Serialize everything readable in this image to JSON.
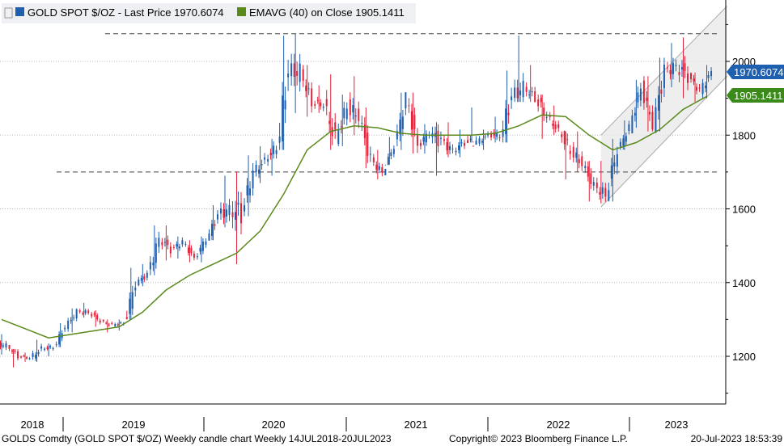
{
  "legend": {
    "item1_label": "GOLD SPOT $/OZ - Last Price 1970.6074",
    "item1_color": "#1f5fb0",
    "item2_label": "EMAVG (40)  on Close 1905.1411",
    "item2_color": "#5a8a1a"
  },
  "badges": {
    "last_price": "1970.6074",
    "last_price_color": "#1f5fb0",
    "ema": "1905.1411",
    "ema_color": "#3a8a1a"
  },
  "footer": {
    "left": "GOLDS Comdty (GOLD SPOT $/OZ) Weekly candle chart  Weekly 14JUL2018-20JUL2023",
    "center": "Copyright© 2023 Bloomberg Finance L.P.",
    "right": "20-Jul-2023 18:53:39"
  },
  "chart_data": {
    "type": "candlestick",
    "title": "",
    "frequency": "Weekly",
    "x_range": [
      "2018-07-14",
      "2023-07-20"
    ],
    "y_axis_side": "right",
    "ylim": [
      1100,
      2150
    ],
    "yticks": [
      1200,
      1400,
      1600,
      1800,
      2000
    ],
    "xtick_labels": [
      "2018",
      "2019",
      "2020",
      "2021",
      "2022",
      "2023"
    ],
    "grid": "horizontal-dotted",
    "up_color": "#1f5fb0",
    "down_color": "#e0223a",
    "series": [
      {
        "name": "GOLD SPOT $/OZ",
        "kind": "candles",
        "x": [
          "2018-07",
          "2018-08",
          "2018-09",
          "2018-10",
          "2018-11",
          "2018-12",
          "2019-01",
          "2019-02",
          "2019-03",
          "2019-04",
          "2019-05",
          "2019-06",
          "2019-07",
          "2019-08",
          "2019-09",
          "2019-10",
          "2019-11",
          "2019-12",
          "2020-01",
          "2020-02",
          "2020-03",
          "2020-04",
          "2020-05",
          "2020-06",
          "2020-07",
          "2020-08",
          "2020-09",
          "2020-10",
          "2020-11",
          "2020-12",
          "2021-01",
          "2021-02",
          "2021-03",
          "2021-04",
          "2021-05",
          "2021-06",
          "2021-07",
          "2021-08",
          "2021-09",
          "2021-10",
          "2021-11",
          "2021-12",
          "2022-01",
          "2022-02",
          "2022-03",
          "2022-04",
          "2022-05",
          "2022-06",
          "2022-07",
          "2022-08",
          "2022-09",
          "2022-10",
          "2022-11",
          "2022-12",
          "2023-01",
          "2023-02",
          "2023-03",
          "2023-04",
          "2023-05",
          "2023-06",
          "2023-07"
        ],
        "close": [
          1230,
          1200,
          1195,
          1220,
          1225,
          1280,
          1320,
          1320,
          1295,
          1285,
          1290,
          1400,
          1420,
          1520,
          1490,
          1510,
          1465,
          1520,
          1580,
          1600,
          1590,
          1700,
          1730,
          1770,
          1970,
          1970,
          1890,
          1880,
          1790,
          1880,
          1850,
          1730,
          1700,
          1770,
          1900,
          1770,
          1810,
          1780,
          1760,
          1780,
          1780,
          1800,
          1800,
          1900,
          1930,
          1900,
          1850,
          1810,
          1760,
          1720,
          1660,
          1640,
          1760,
          1820,
          1930,
          1830,
          1970,
          1990,
          1960,
          1920,
          1970
        ],
        "high": [
          1260,
          1220,
          1210,
          1245,
          1235,
          1290,
          1330,
          1345,
          1325,
          1300,
          1300,
          1440,
          1450,
          1555,
          1555,
          1525,
          1515,
          1525,
          1610,
          1690,
          1700,
          1745,
          1770,
          1790,
          2070,
          2075,
          1990,
          1935,
          1965,
          1910,
          1960,
          1875,
          1760,
          1795,
          1915,
          1915,
          1830,
          1835,
          1835,
          1815,
          1875,
          1815,
          1850,
          1975,
          2070,
          1990,
          1910,
          1880,
          1810,
          1810,
          1730,
          1730,
          1790,
          1840,
          1950,
          1960,
          2010,
          2050,
          2065,
          1970,
          1990
        ],
        "low": [
          1205,
          1170,
          1185,
          1185,
          1200,
          1225,
          1265,
          1305,
          1280,
          1265,
          1270,
          1300,
          1390,
          1420,
          1460,
          1465,
          1455,
          1455,
          1515,
          1550,
          1450,
          1580,
          1670,
          1690,
          1760,
          1860,
          1850,
          1860,
          1760,
          1770,
          1800,
          1710,
          1680,
          1720,
          1760,
          1750,
          1750,
          1690,
          1740,
          1740,
          1780,
          1760,
          1780,
          1780,
          1890,
          1890,
          1790,
          1800,
          1680,
          1700,
          1620,
          1615,
          1620,
          1760,
          1820,
          1810,
          1810,
          1930,
          1900,
          1890,
          1900
        ]
      },
      {
        "name": "EMAVG (40)",
        "kind": "line",
        "x": [
          "2018-07",
          "2018-09",
          "2018-11",
          "2019-01",
          "2019-03",
          "2019-05",
          "2019-07",
          "2019-09",
          "2019-11",
          "2020-01",
          "2020-03",
          "2020-05",
          "2020-07",
          "2020-09",
          "2020-11",
          "2021-01",
          "2021-03",
          "2021-05",
          "2021-07",
          "2021-09",
          "2021-11",
          "2022-01",
          "2022-03",
          "2022-05",
          "2022-07",
          "2022-09",
          "2022-11",
          "2023-01",
          "2023-03",
          "2023-05",
          "2023-07"
        ],
        "values": [
          1300,
          1275,
          1250,
          1260,
          1270,
          1280,
          1320,
          1380,
          1420,
          1450,
          1480,
          1540,
          1640,
          1760,
          1810,
          1825,
          1820,
          1805,
          1800,
          1800,
          1800,
          1805,
          1825,
          1855,
          1850,
          1800,
          1760,
          1780,
          1815,
          1870,
          1905
        ]
      }
    ],
    "reference_lines": [
      {
        "value": 2075,
        "style": "dashed"
      },
      {
        "value": 1700,
        "style": "dashed"
      }
    ],
    "channel": {
      "start": "2022-10",
      "end": "2023-07",
      "upper": [
        1800,
        2150
      ],
      "lower": [
        1605,
        1960
      ]
    }
  }
}
